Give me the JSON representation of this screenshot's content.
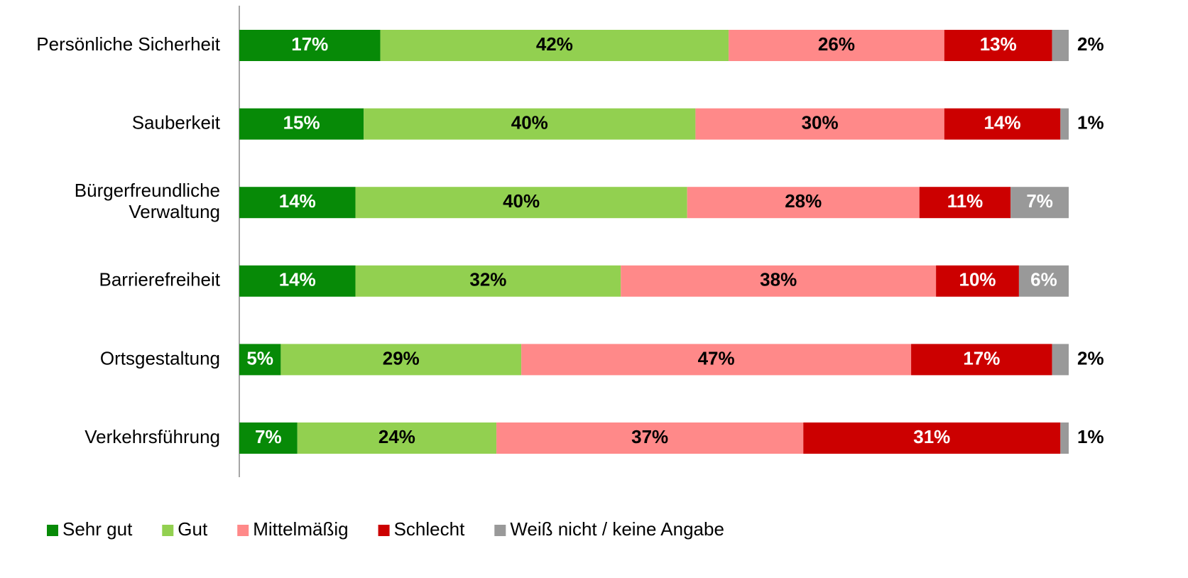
{
  "chart_data": {
    "type": "stacked-barh",
    "categories": [
      "Persönliche Sicherheit",
      "Sauberkeit",
      "Bürgerfreundliche\nVerwaltung",
      "Barrierefreiheit",
      "Ortsgestaltung",
      "Verkehrsführung"
    ],
    "xlim": [
      0,
      100
    ],
    "series": [
      {
        "name": "Sehr gut",
        "color": "#078a07",
        "label_color": "#ffffff",
        "values": [
          17,
          15,
          14,
          14,
          5,
          7
        ],
        "value_labels": [
          "17%",
          "15%",
          "14%",
          "14%",
          "5%",
          "7%"
        ]
      },
      {
        "name": "Gut",
        "color": "#92d050",
        "label_color": "#000000",
        "values": [
          42,
          40,
          40,
          32,
          29,
          24
        ],
        "value_labels": [
          "42%",
          "40%",
          "40%",
          "32%",
          "29%",
          "24%"
        ]
      },
      {
        "name": "Mittelmäßig",
        "color": "#ff8989",
        "label_color": "#000000",
        "values": [
          26,
          30,
          28,
          38,
          47,
          37
        ],
        "value_labels": [
          "26%",
          "30%",
          "28%",
          "38%",
          "47%",
          "37%"
        ]
      },
      {
        "name": "Schlecht",
        "color": "#cc0000",
        "label_color": "#ffffff",
        "values": [
          13,
          14,
          11,
          10,
          17,
          31
        ],
        "value_labels": [
          "13%",
          "14%",
          "11%",
          "10%",
          "17%",
          "31%"
        ]
      },
      {
        "name": "Weiß nicht / keine Angabe",
        "color": "#999999",
        "label_color": "#ffffff",
        "values": [
          2,
          1,
          7,
          6,
          2,
          1
        ],
        "value_labels": [
          "2%",
          "1%",
          "7%",
          "6%",
          "2%",
          "1%"
        ]
      }
    ],
    "legend": "bottom-left"
  }
}
